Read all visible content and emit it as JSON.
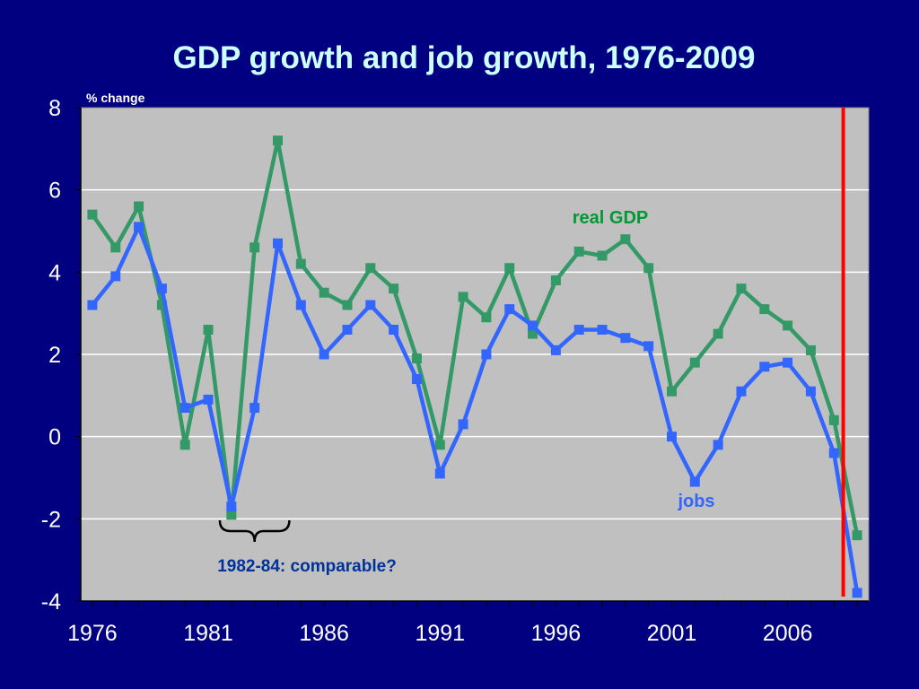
{
  "chart_data": {
    "type": "line",
    "title": "GDP growth and job growth, 1976-2009",
    "ylabel": "% change",
    "ylim": [
      -4,
      8
    ],
    "yticks": [
      8,
      6,
      4,
      2,
      0,
      -2,
      -4
    ],
    "xlim": [
      1975.5,
      2009.5
    ],
    "xtick_labels": [
      "1976",
      "1981",
      "1986",
      "1991",
      "1996",
      "2001",
      "2006"
    ],
    "x": [
      1976,
      1977,
      1978,
      1979,
      1980,
      1981,
      1982,
      1983,
      1984,
      1985,
      1986,
      1987,
      1988,
      1989,
      1990,
      1991,
      1992,
      1993,
      1994,
      1995,
      1996,
      1997,
      1998,
      1999,
      2000,
      2001,
      2002,
      2003,
      2004,
      2005,
      2006,
      2007,
      2008,
      2009
    ],
    "grid": true,
    "series": [
      {
        "name": "real GDP",
        "color": "#339966",
        "label_color": "#009933",
        "values": [
          5.4,
          4.6,
          5.6,
          3.2,
          -0.2,
          2.6,
          -1.9,
          4.6,
          7.2,
          4.2,
          3.5,
          3.2,
          4.1,
          3.6,
          1.9,
          -0.2,
          3.4,
          2.9,
          4.1,
          2.5,
          3.8,
          4.5,
          4.4,
          4.8,
          4.1,
          1.1,
          1.8,
          2.5,
          3.6,
          3.1,
          2.7,
          2.1,
          0.4,
          -2.4
        ]
      },
      {
        "name": "jobs",
        "color": "#3366FF",
        "label_color": "#3366FF",
        "values": [
          3.2,
          3.9,
          5.1,
          3.6,
          0.7,
          0.9,
          -1.7,
          0.7,
          4.7,
          3.2,
          2.0,
          2.6,
          3.2,
          2.6,
          1.4,
          -0.9,
          0.3,
          2.0,
          3.1,
          2.7,
          2.1,
          2.6,
          2.6,
          2.4,
          2.2,
          0.0,
          -1.1,
          -0.2,
          1.1,
          1.7,
          1.8,
          1.1,
          -0.4,
          -3.8
        ]
      }
    ],
    "marker_line": {
      "x": 2008.4,
      "color": "#FF0000"
    },
    "annotation": {
      "text": "1982-84: comparable?",
      "brace_from": 1981.5,
      "brace_to": 1984.5
    }
  },
  "colors": {
    "background": "#000080",
    "plot_background": "#C0C0C0",
    "title": "#CCFFFF",
    "axis_text": "#FFFFFF",
    "annotation_text": "#003399"
  }
}
